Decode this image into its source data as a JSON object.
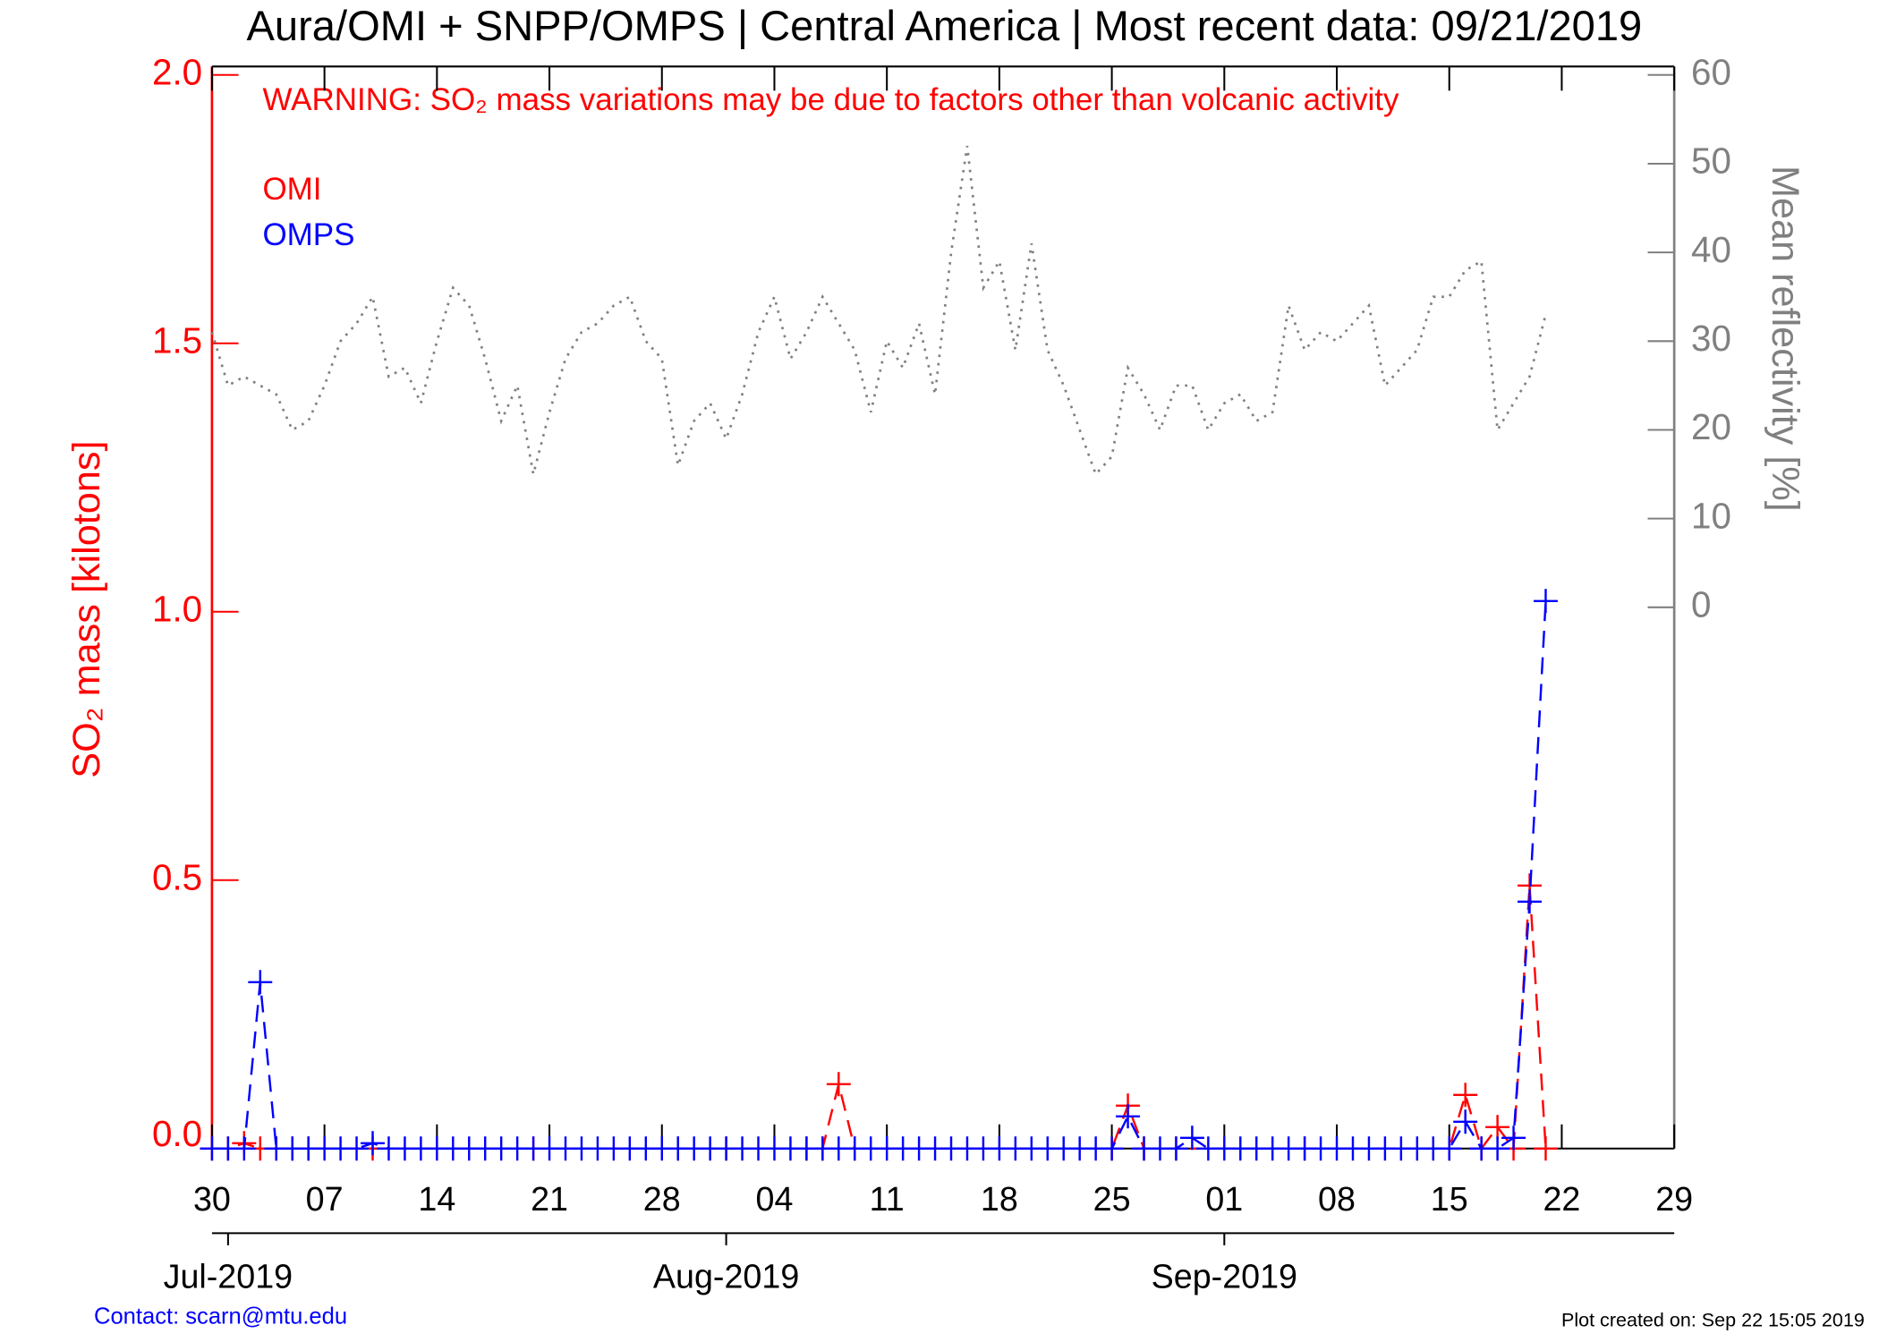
{
  "chart_data": {
    "type": "line",
    "title": "Aura/OMI + SNPP/OMPS | Central America | Most recent data: 09/21/2019",
    "annotation": "WARNING: SO₂ mass variations may be due to factors other than volcanic activity",
    "ylabel": "SO₂ mass [kilotons]",
    "y2label": "Mean reflectivity [%]",
    "contact": "Contact: scarn@mtu.edu",
    "footer": "Plot created on: Sep 22 15:05 2019",
    "xlim": [
      "2019-06-30",
      "2019-09-29"
    ],
    "xticks": [
      {
        "value": "2019-06-30",
        "label": "30"
      },
      {
        "value": "2019-07-07",
        "label": "07"
      },
      {
        "value": "2019-07-14",
        "label": "14"
      },
      {
        "value": "2019-07-21",
        "label": "21"
      },
      {
        "value": "2019-07-28",
        "label": "28"
      },
      {
        "value": "2019-08-04",
        "label": "04"
      },
      {
        "value": "2019-08-11",
        "label": "11"
      },
      {
        "value": "2019-08-18",
        "label": "18"
      },
      {
        "value": "2019-08-25",
        "label": "25"
      },
      {
        "value": "2019-09-01",
        "label": "01"
      },
      {
        "value": "2019-09-08",
        "label": "08"
      },
      {
        "value": "2019-09-15",
        "label": "15"
      },
      {
        "value": "2019-09-22",
        "label": "22"
      },
      {
        "value": "2019-09-29",
        "label": "29"
      }
    ],
    "month_ticks": [
      {
        "value": "2019-07-01",
        "label": "Jul-2019"
      },
      {
        "value": "2019-08-01",
        "label": "Aug-2019"
      },
      {
        "value": "2019-09-01",
        "label": "Sep-2019"
      }
    ],
    "ylim": [
      0,
      2
    ],
    "yticks": [
      {
        "value": 0,
        "label": "0.0"
      },
      0.5,
      {
        "value": 1,
        "label": "1.0"
      },
      1.5,
      {
        "value": 2,
        "label": "2.0"
      }
    ],
    "y2lim": [
      -61,
      60
    ],
    "y2ticks": [
      0,
      10,
      20,
      30,
      40,
      50,
      60
    ],
    "x": [
      "2019-06-30",
      "2019-07-01",
      "2019-07-02",
      "2019-07-03",
      "2019-07-04",
      "2019-07-05",
      "2019-07-06",
      "2019-07-07",
      "2019-07-08",
      "2019-07-09",
      "2019-07-10",
      "2019-07-11",
      "2019-07-12",
      "2019-07-13",
      "2019-07-14",
      "2019-07-15",
      "2019-07-16",
      "2019-07-17",
      "2019-07-18",
      "2019-07-19",
      "2019-07-20",
      "2019-07-21",
      "2019-07-22",
      "2019-07-23",
      "2019-07-24",
      "2019-07-25",
      "2019-07-26",
      "2019-07-27",
      "2019-07-28",
      "2019-07-29",
      "2019-07-30",
      "2019-07-31",
      "2019-08-01",
      "2019-08-02",
      "2019-08-03",
      "2019-08-04",
      "2019-08-05",
      "2019-08-06",
      "2019-08-07",
      "2019-08-08",
      "2019-08-09",
      "2019-08-10",
      "2019-08-11",
      "2019-08-12",
      "2019-08-13",
      "2019-08-14",
      "2019-08-15",
      "2019-08-16",
      "2019-08-17",
      "2019-08-18",
      "2019-08-19",
      "2019-08-20",
      "2019-08-21",
      "2019-08-22",
      "2019-08-23",
      "2019-08-24",
      "2019-08-25",
      "2019-08-26",
      "2019-08-27",
      "2019-08-28",
      "2019-08-29",
      "2019-08-30",
      "2019-08-31",
      "2019-09-01",
      "2019-09-02",
      "2019-09-03",
      "2019-09-04",
      "2019-09-05",
      "2019-09-06",
      "2019-09-07",
      "2019-09-08",
      "2019-09-09",
      "2019-09-10",
      "2019-09-11",
      "2019-09-12",
      "2019-09-13",
      "2019-09-14",
      "2019-09-15",
      "2019-09-16",
      "2019-09-17",
      "2019-09-18",
      "2019-09-19",
      "2019-09-20",
      "2019-09-21"
    ],
    "series": [
      {
        "color": "#808080",
        "axis": "y2",
        "style": "dotted",
        "values": [
          31,
          25,
          26,
          25,
          24,
          20,
          21,
          25,
          30,
          32,
          35,
          26,
          27,
          23,
          30,
          36,
          34,
          28,
          21,
          25,
          15,
          22,
          28,
          31,
          32,
          34,
          35,
          30,
          28,
          16,
          21,
          23,
          19,
          24,
          31,
          35,
          28,
          31,
          35,
          32,
          29,
          22,
          30,
          27,
          32,
          24,
          40,
          52,
          36,
          39,
          29,
          41,
          29,
          25,
          20,
          15,
          17,
          27,
          24,
          20,
          25,
          25,
          20,
          23,
          24,
          21,
          22,
          34,
          29,
          31,
          30,
          32,
          34,
          25,
          27,
          29,
          35,
          35,
          38,
          39,
          20,
          23,
          26,
          33
        ]
      },
      {
        "name": "OMI",
        "color": "#ff0000",
        "style": "dashed",
        "x": [
          "2019-06-30",
          "2019-07-01",
          "2019-07-02",
          "2019-07-03",
          "2019-07-04",
          "2019-07-05",
          "2019-07-06",
          "2019-07-10",
          "2019-07-20",
          "2019-07-29",
          "2019-08-01",
          "2019-08-06",
          "2019-08-07",
          "2019-08-08",
          "2019-08-09",
          "2019-08-25",
          "2019-08-26",
          "2019-08-27",
          "2019-08-29",
          "2019-09-06",
          "2019-09-15",
          "2019-09-16",
          "2019-09-17",
          "2019-09-18",
          "2019-09-19",
          "2019-09-20",
          "2019-09-21"
        ],
        "values": [
          0,
          0,
          0.01,
          0,
          0,
          0,
          0,
          0,
          0,
          0,
          0,
          0,
          0,
          0.12,
          0,
          0,
          0.08,
          0,
          0,
          0,
          0,
          0.1,
          0,
          0.04,
          0,
          0.49,
          0
        ]
      },
      {
        "name": "OMPS",
        "color": "#0000ff",
        "style": "dashed",
        "values": [
          0,
          0,
          0,
          0.31,
          0,
          0,
          0,
          0,
          0,
          0,
          0.01,
          0,
          0,
          0,
          0,
          0,
          0,
          0,
          0,
          0,
          0,
          0,
          0,
          0,
          0,
          0,
          0,
          0,
          0,
          0,
          0,
          0,
          0,
          0,
          0,
          0,
          0,
          0,
          0,
          0,
          0,
          0,
          0,
          0,
          0,
          0,
          0,
          0,
          0,
          0,
          0,
          0,
          0,
          0,
          0,
          0,
          0,
          0.06,
          0,
          0,
          0,
          0.02,
          0,
          0,
          0,
          0,
          0,
          0,
          0,
          0,
          0,
          0,
          0,
          0,
          0,
          0,
          0,
          0,
          0.05,
          0,
          0,
          0.02,
          0.46,
          1.02
        ]
      }
    ]
  }
}
